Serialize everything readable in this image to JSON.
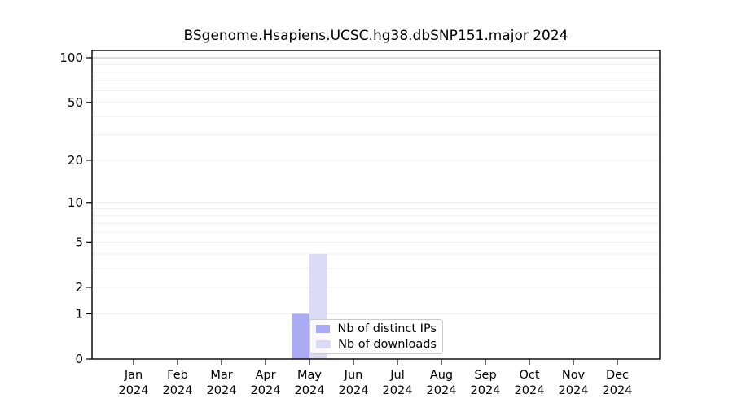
{
  "chart_data": {
    "type": "bar",
    "title": "BSgenome.Hsapiens.UCSC.hg38.dbSNP151.major 2024",
    "categories": [
      "Jan",
      "Feb",
      "Mar",
      "Apr",
      "May",
      "Jun",
      "Jul",
      "Aug",
      "Sep",
      "Oct",
      "Nov",
      "Dec"
    ],
    "tick_year": "2024",
    "series": [
      {
        "name": "Nb of distinct IPs",
        "color": "#aaaaf3",
        "values": [
          0,
          0,
          0,
          0,
          1,
          0,
          0,
          0,
          0,
          0,
          0,
          0
        ]
      },
      {
        "name": "Nb of downloads",
        "color": "#dbdbf6",
        "values": [
          0,
          0,
          0,
          0,
          4,
          0,
          0,
          0,
          0,
          0,
          0,
          0
        ]
      }
    ],
    "xlabel": "",
    "ylabel": "",
    "yscale": "log1p",
    "ylim": [
      0,
      112
    ],
    "yticks": [
      0,
      1,
      2,
      5,
      10,
      20,
      50,
      100
    ],
    "gridline_values": [
      1,
      2,
      3,
      4,
      5,
      6,
      7,
      8,
      9,
      10,
      20,
      30,
      40,
      50,
      60,
      70,
      80,
      90,
      100
    ],
    "grid_on": true,
    "legend_position": "inside lower center",
    "colors": {
      "axis": "#000000",
      "tick_label": "#000000",
      "grid_minor": "#efefef",
      "grid_major": "#c6c6c6",
      "background": "#ffffff"
    }
  }
}
